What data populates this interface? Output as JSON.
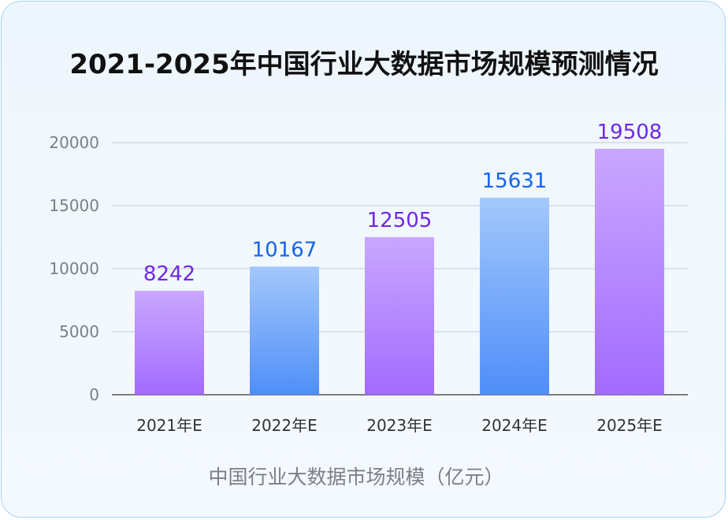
{
  "chart_data": {
    "type": "bar",
    "title": "2021-2025年中国行业大数据市场规模预测情况",
    "xlabel": "中国行业大数据市场规模（亿元）",
    "ylabel": "",
    "categories": [
      "2021年E",
      "2022年E",
      "2023年E",
      "2024年E",
      "2025年E"
    ],
    "values": [
      8242,
      10167,
      12505,
      15631,
      19508
    ],
    "ylim": [
      0,
      20000
    ],
    "yticks": [
      0,
      5000,
      10000,
      15000,
      20000
    ],
    "grid": true,
    "legend": "none",
    "colors": {
      "purple_top": "#c9a7ff",
      "purple_bottom": "#a26bff",
      "blue_top": "#a3c8fb",
      "blue_bottom": "#4f8ef9",
      "purple_label": "#7028e4",
      "blue_label": "#1464ea",
      "gridline": "#d3dae3",
      "axis": "#555555"
    },
    "bar_color_scheme": [
      "purple",
      "blue",
      "purple",
      "blue",
      "purple"
    ]
  }
}
